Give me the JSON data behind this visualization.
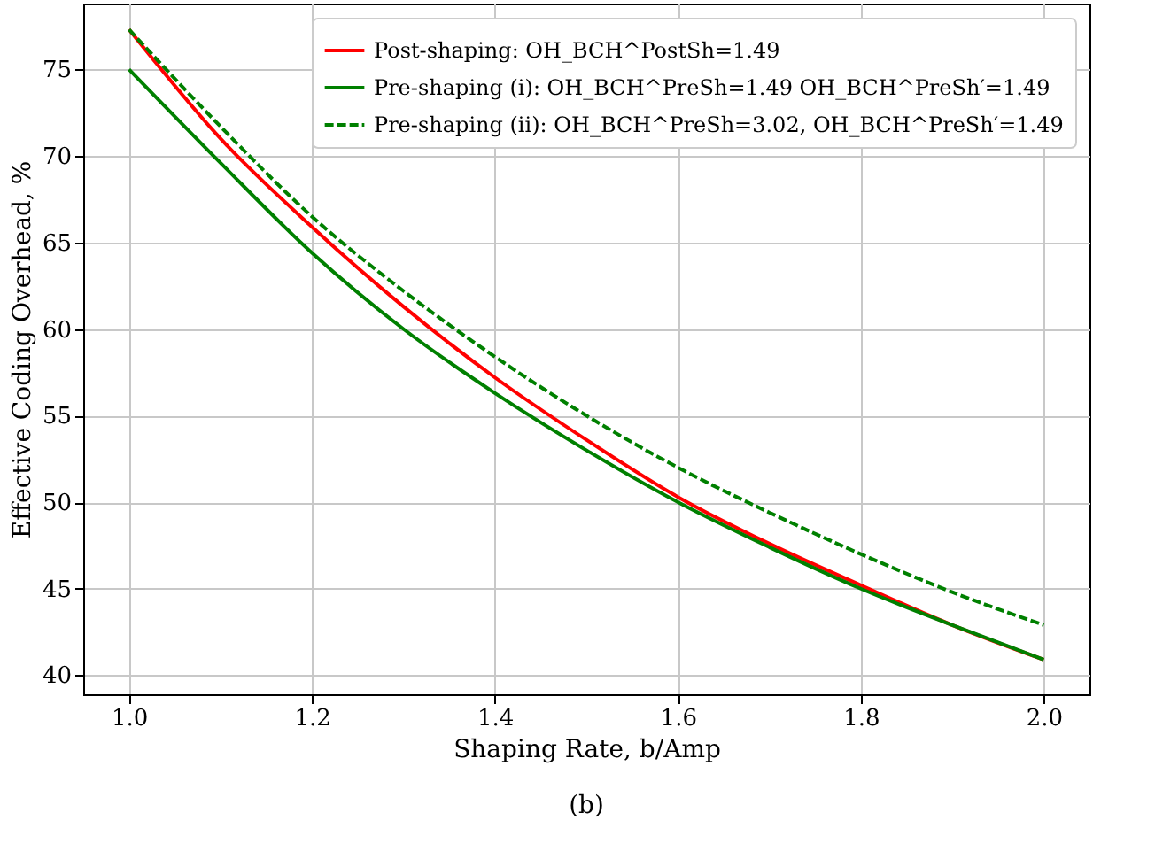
{
  "chart_data": {
    "type": "line",
    "xlabel": "Shaping Rate, b/Amp",
    "ylabel": "Effective Coding Overhead, %",
    "x": [
      1.0,
      1.1,
      1.2,
      1.3,
      1.4,
      1.5,
      1.6,
      1.7,
      1.8,
      1.9,
      2.0
    ],
    "series": [
      {
        "name": "Post-shaping: OH_BCH^PostSh=1.49",
        "color": "#ff0000",
        "line_style": "solid",
        "values": [
          77.3,
          71.0,
          65.9,
          61.3,
          57.2,
          53.6,
          50.3,
          47.6,
          45.2,
          42.9,
          40.9
        ]
      },
      {
        "name": "Pre-shaping (i): OH_BCH^PreSh=1.49 OH_BCH^PreSh′=1.49",
        "color": "#008000",
        "line_style": "solid",
        "values": [
          75.0,
          69.6,
          64.4,
          60.0,
          56.3,
          53.0,
          50.0,
          47.4,
          45.0,
          42.9,
          40.9
        ]
      },
      {
        "name": "Pre-shaping (ii): OH_BCH^PreSh=3.02, OH_BCH^PreSh′=1.49",
        "color": "#008000",
        "line_style": "dashed",
        "values": [
          77.3,
          71.7,
          66.5,
          62.2,
          58.4,
          55.0,
          52.0,
          49.4,
          47.0,
          44.8,
          42.9
        ]
      }
    ],
    "xlim": [
      0.95,
      2.05
    ],
    "ylim": [
      38.9,
      78.8
    ],
    "xticks": [
      {
        "value": 1.0,
        "label": "1.0"
      },
      {
        "value": 1.2,
        "label": "1.2"
      },
      {
        "value": 1.4,
        "label": "1.4"
      },
      {
        "value": 1.6,
        "label": "1.6"
      },
      {
        "value": 1.8,
        "label": "1.8"
      },
      {
        "value": 2.0,
        "label": "2.0"
      }
    ],
    "yticks": [
      40,
      45,
      50,
      55,
      60,
      65,
      70,
      75
    ],
    "grid": true,
    "legend": "top right",
    "marker": "none",
    "annotations": [
      "(b)"
    ]
  }
}
